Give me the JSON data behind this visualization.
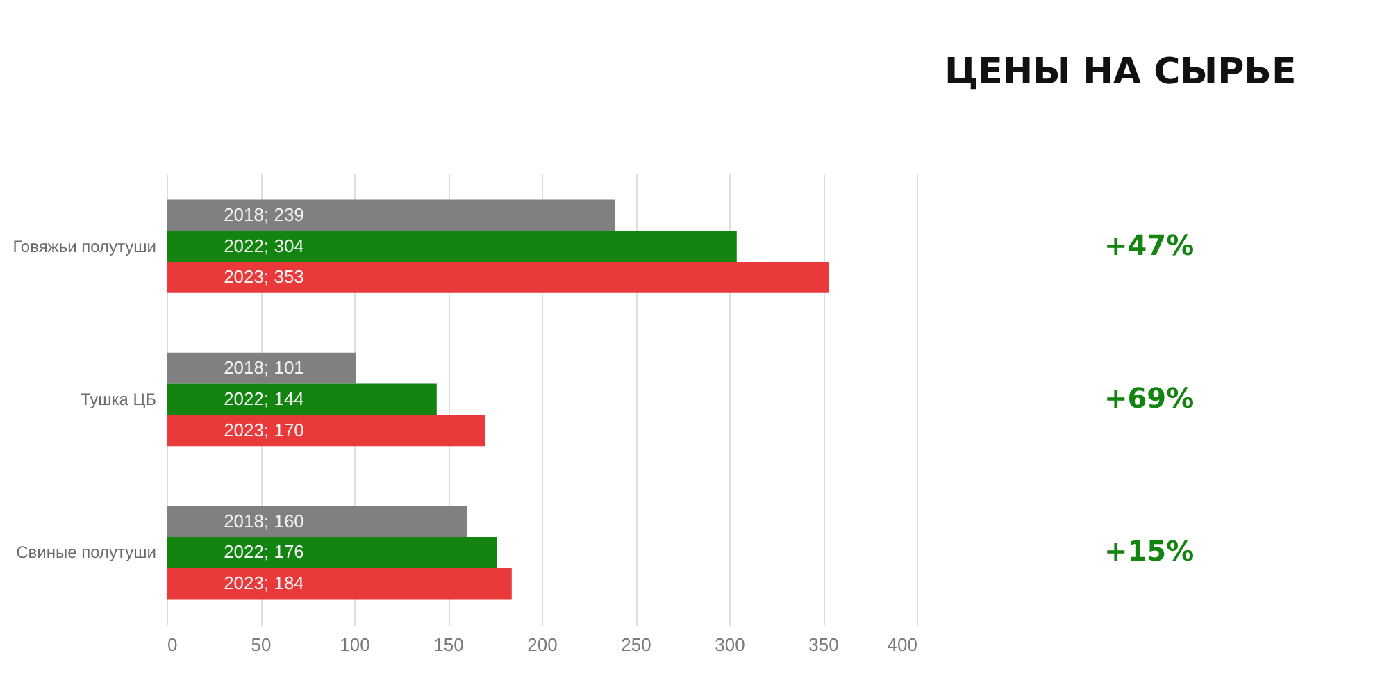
{
  "chart_data": {
    "type": "bar",
    "orientation": "horizontal",
    "title": "ЦЕНЫ НА СЫРЬЕ",
    "categories": [
      "Говяжьи полутуши",
      "Тушка ЦБ",
      "Свиные полутуши"
    ],
    "series": [
      {
        "color": "#808080",
        "values": [
          239,
          101,
          160
        ],
        "value_labels": [
          "2018; 239",
          "2018; 101",
          "2018; 160"
        ]
      },
      {
        "color": "#13840f",
        "values": [
          304,
          144,
          176
        ],
        "value_labels": [
          "2022; 304",
          "2022; 144",
          "2022; 176"
        ]
      },
      {
        "color": "#e9393b",
        "values": [
          353,
          170,
          184
        ],
        "value_labels": [
          "2023; 353",
          "2023; 170",
          "2023; 184"
        ]
      }
    ],
    "xlim": [
      0,
      400
    ],
    "xticks": [
      0,
      50,
      100,
      150,
      200,
      250,
      300,
      350,
      400
    ],
    "grid": "x",
    "legend": false,
    "annotations": [
      "+47%",
      "+69%",
      "+15%"
    ]
  }
}
